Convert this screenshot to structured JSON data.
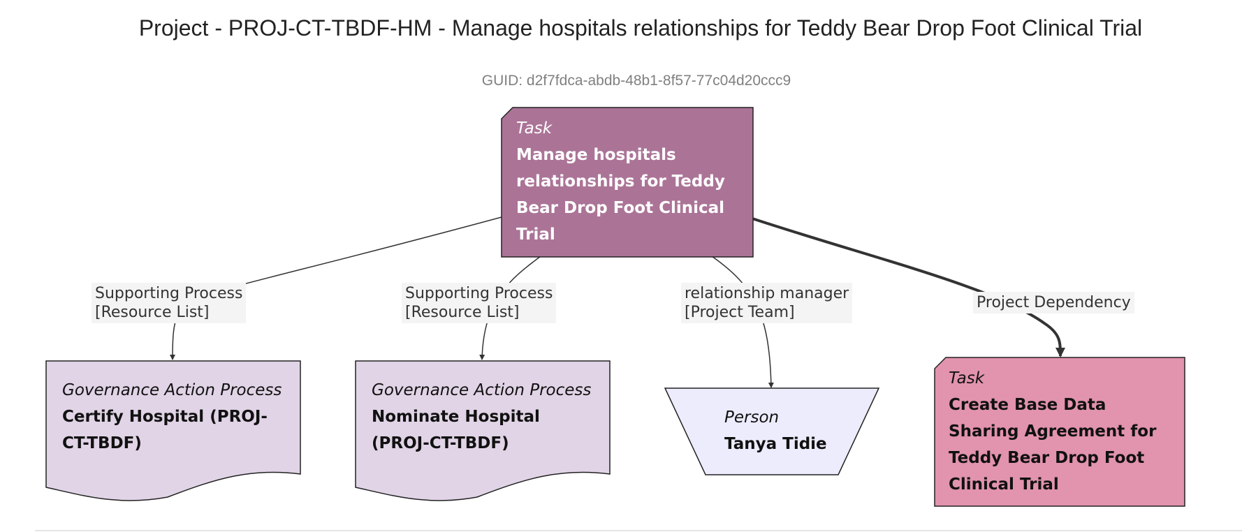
{
  "page": {
    "title": "Project - PROJ-CT-TBDF-HM - Manage hospitals relationships for Teddy Bear Drop Foot Clinical Trial",
    "guid": "GUID: d2f7fdca-abdb-48b1-8f57-77c04d20ccc9"
  },
  "nodes": {
    "main_task": {
      "kind": "Task",
      "name": "Manage hospitals relationships for Teddy Bear Drop Foot Clinical Trial",
      "fill": "#ab7497"
    },
    "certify": {
      "kind": "Governance Action Process",
      "name": "Certify Hospital (PROJ-CT-TBDF)",
      "fill": "#e1d4e6"
    },
    "nominate": {
      "kind": "Governance Action Process",
      "name": "Nominate Hospital (PROJ-CT-TBDF)",
      "fill": "#e1d4e6"
    },
    "person": {
      "kind": "Person",
      "name": "Tanya Tidie",
      "fill": "#ececfd"
    },
    "dependency_task": {
      "kind": "Task",
      "name": "Create Base Data Sharing Agreement for Teddy Bear Drop Foot Clinical Trial",
      "fill": "#e293ad"
    }
  },
  "edges": {
    "to_certify": {
      "line1": "Supporting Process",
      "line2": "[Resource List]"
    },
    "to_nominate": {
      "line1": "Supporting Process",
      "line2": "[Resource List]"
    },
    "to_person": {
      "line1": "relationship manager",
      "line2": "[Project Team]"
    },
    "to_dependency": {
      "line1": "Project Dependency"
    }
  }
}
